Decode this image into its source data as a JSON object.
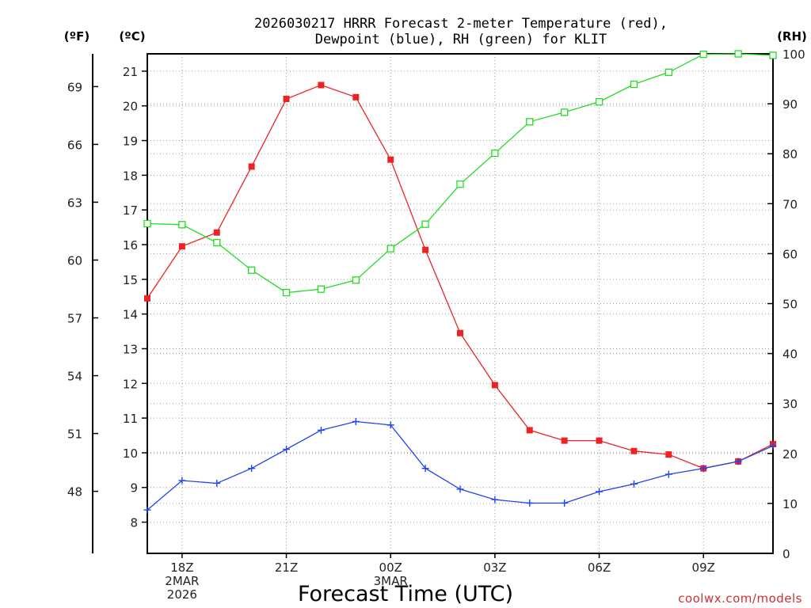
{
  "chart_data": {
    "type": "line",
    "title_line1": "2026030217 HRRR Forecast 2-meter Temperature (red),",
    "title_line2": "Dewpoint (blue), RH (green) for KLIT",
    "xlabel": "Forecast Time (UTC)",
    "credit": "coolwx.com/models",
    "units": {
      "fahrenheit": "(ºF)",
      "celsius": "(ºC)",
      "rh": "(RH)"
    },
    "x_hours": [
      17,
      18,
      19,
      20,
      21,
      22,
      23,
      24,
      25,
      26,
      27,
      28,
      29,
      30,
      31,
      32,
      33,
      34,
      35
    ],
    "xlim": [
      17,
      35
    ],
    "ylim_c": [
      7.1,
      21.5
    ],
    "ylim_rh": [
      0,
      100
    ],
    "x_ticks": [
      {
        "hour": 18,
        "lines": [
          "18Z",
          "2MAR",
          "2026"
        ]
      },
      {
        "hour": 21,
        "lines": [
          "21Z"
        ]
      },
      {
        "hour": 24,
        "lines": [
          "00Z",
          "3MAR"
        ]
      },
      {
        "hour": 27,
        "lines": [
          "03Z"
        ]
      },
      {
        "hour": 30,
        "lines": [
          "06Z"
        ]
      },
      {
        "hour": 33,
        "lines": [
          "09Z"
        ]
      }
    ],
    "celsius_ticks": [
      "8",
      "9",
      "10",
      "11",
      "12",
      "13",
      "14",
      "15",
      "16",
      "17",
      "18",
      "19",
      "20",
      "21"
    ],
    "fahrenheit_ticks": [
      "48",
      "51",
      "54",
      "57",
      "60",
      "63",
      "66",
      "69"
    ],
    "rh_ticks": [
      "0",
      "10",
      "20",
      "30",
      "40",
      "50",
      "60",
      "70",
      "80",
      "90",
      "100"
    ],
    "series": [
      {
        "name": "Temperature",
        "color": "#ee2222",
        "marker": "filled-square",
        "values": [
          14.45,
          15.95,
          16.35,
          18.25,
          20.2,
          20.6,
          20.25,
          18.45,
          15.85,
          13.45,
          11.95,
          10.65,
          10.35,
          10.35,
          10.05,
          9.95,
          9.55,
          9.75,
          10.25
        ]
      },
      {
        "name": "Dewpoint",
        "color": "#2244ee",
        "marker": "plus",
        "values": [
          8.35,
          9.2,
          9.12,
          9.55,
          10.1,
          10.65,
          10.9,
          10.8,
          9.55,
          8.95,
          8.65,
          8.55,
          8.55,
          8.88,
          9.1,
          9.38,
          9.55,
          9.75,
          10.2
        ]
      },
      {
        "name": "RH",
        "color": "#22dd22",
        "marker": "open-square",
        "values": [
          66,
          65.8,
          62.2,
          56.7,
          52.2,
          52.9,
          54.7,
          61,
          65.9,
          73.9,
          80.1,
          86.4,
          88.3,
          90.4,
          93.9,
          96.3,
          99.9,
          100,
          99.7
        ]
      }
    ]
  }
}
